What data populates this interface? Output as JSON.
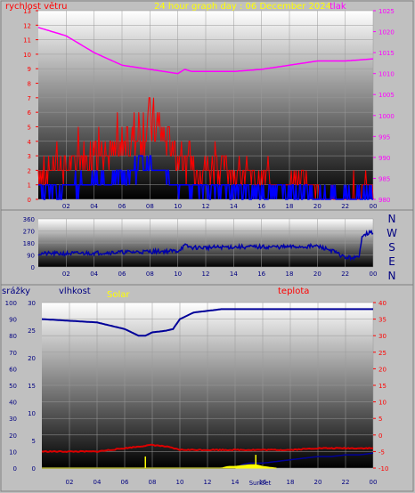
{
  "header": {
    "wind_label": "rychlost větru",
    "title": "24 hour graph day : 06 December 2024",
    "pressure_label": "tlak"
  },
  "compass": [
    "N",
    "W",
    "S",
    "E",
    "N"
  ],
  "lower_labels": {
    "rain": "srážky",
    "humidity": "vlhkost",
    "solar": "Solar",
    "temperature": "teplota",
    "sunrise_sunset": "SunSet"
  },
  "colors": {
    "wind_gust": "#ff0000",
    "wind_avg": "#0000ff",
    "pressure": "#ff00ff",
    "direction": "#0000aa",
    "humidity": "#000099",
    "temperature": "#dd0000",
    "rain": "#000099",
    "solar": "#ffff00",
    "title": "#ffff00"
  },
  "chart_data": [
    {
      "type": "line",
      "title": "24 hour graph day : 06 December 2024",
      "x_ticks": [
        "02",
        "04",
        "06",
        "08",
        "10",
        "12",
        "14",
        "16",
        "18",
        "20",
        "22",
        "00"
      ],
      "y_left_ticks": [
        "0",
        "1",
        "2",
        "3",
        "4",
        "5",
        "6",
        "7",
        "8",
        "9",
        "10",
        "11",
        "12",
        "13"
      ],
      "y_right_ticks": [
        "980",
        "985",
        "990",
        "995",
        "1000",
        "1005",
        "1010",
        "1015",
        "1020",
        "1025"
      ],
      "ylim_left": [
        0,
        13
      ],
      "ylim_right": [
        980,
        1025
      ],
      "series": [
        {
          "name": "rychlost větru",
          "axis": "left",
          "style": "gust",
          "x": [
            0,
            1,
            2,
            3,
            4,
            5,
            6,
            7,
            7.5,
            8,
            8.5,
            9,
            9.5,
            10,
            11,
            12,
            13,
            14,
            15,
            16,
            17,
            18,
            19,
            19.5,
            20,
            21,
            22,
            23,
            23.5,
            24
          ],
          "y": [
            1.5,
            2,
            2,
            2.5,
            3,
            3,
            3,
            4,
            5,
            5,
            4.5,
            4,
            3.5,
            2.5,
            2,
            2,
            2,
            1.5,
            1.5,
            1.5,
            1,
            1,
            1.5,
            1,
            0.5,
            0,
            0,
            0,
            1.5,
            0.5
          ]
        },
        {
          "name": "",
          "axis": "left",
          "style": "avg",
          "x": [
            0,
            1,
            2,
            3,
            4,
            5,
            6,
            7,
            7.5,
            8,
            8.5,
            9,
            9.5,
            10,
            11,
            12,
            13,
            14,
            15,
            16,
            17,
            18,
            19,
            19.5,
            20,
            21,
            22,
            23,
            23.5,
            24
          ],
          "y": [
            0.5,
            0.8,
            0.8,
            1,
            1.2,
            1,
            1.5,
            2,
            2.5,
            2.5,
            2.2,
            2,
            1.5,
            1,
            0.8,
            0.8,
            0.8,
            0.5,
            0.5,
            0.5,
            0.5,
            0.3,
            0.5,
            0.3,
            0.1,
            0,
            0,
            0,
            0.5,
            0.2
          ]
        },
        {
          "name": "tlak",
          "axis": "right",
          "style": "pressure",
          "x": [
            0,
            2,
            4,
            6,
            8,
            10,
            10.5,
            11,
            12,
            14,
            16,
            18,
            20,
            22,
            24
          ],
          "y": [
            1021,
            1019,
            1015,
            1012,
            1011,
            1010,
            1011,
            1010.5,
            1010.5,
            1010.5,
            1011,
            1012,
            1013,
            1013,
            1013.5
          ]
        }
      ]
    },
    {
      "type": "line",
      "x_ticks": [
        "02",
        "04",
        "06",
        "08",
        "10",
        "12",
        "14",
        "16",
        "18",
        "20",
        "22",
        "00"
      ],
      "y_ticks": [
        "0",
        "90",
        "180",
        "270",
        "360"
      ],
      "ylim": [
        0,
        360
      ],
      "series": [
        {
          "name": "",
          "x": [
            0,
            2,
            4,
            6,
            8,
            10,
            10.5,
            11,
            12,
            14,
            16,
            18,
            20,
            21,
            22,
            23,
            23.2,
            23.5,
            24
          ],
          "y": [
            100,
            100,
            105,
            110,
            115,
            120,
            160,
            145,
            145,
            150,
            150,
            150,
            155,
            125,
            70,
            70,
            240,
            250,
            260
          ]
        }
      ]
    },
    {
      "type": "line",
      "x_ticks": [
        "02",
        "04",
        "06",
        "08",
        "10",
        "12",
        "14",
        "16",
        "18",
        "20",
        "22",
        "00"
      ],
      "y_rain_ticks": [
        "0",
        "10",
        "20",
        "30",
        "40",
        "50",
        "60",
        "70",
        "80",
        "90",
        "100"
      ],
      "y_humidity_ticks": [
        "0",
        "5",
        "10",
        "15",
        "20",
        "25",
        "30"
      ],
      "y_temp_ticks": [
        "-10",
        "-5",
        "0",
        "5",
        "10",
        "15",
        "20",
        "25",
        "30",
        "35",
        "40"
      ],
      "ylim_rain": [
        0,
        100
      ],
      "ylim_temp": [
        -10,
        40
      ],
      "series": [
        {
          "name": "vlhkost",
          "axis": "rain",
          "style": "humidity",
          "x": [
            0,
            2,
            4,
            5,
            6,
            6.5,
            7,
            7.5,
            8,
            9,
            9.5,
            10,
            11,
            12,
            13,
            14,
            16,
            18,
            20,
            22,
            24
          ],
          "y": [
            90,
            89,
            88,
            86,
            84,
            82,
            80,
            80,
            82,
            83,
            84,
            90,
            94,
            95,
            96,
            96,
            96,
            96,
            96,
            96,
            96
          ]
        },
        {
          "name": "teplota",
          "axis": "temp",
          "style": "temp",
          "x": [
            0,
            2,
            4,
            6,
            7,
            8,
            9,
            10,
            11,
            12,
            14,
            16,
            18,
            20,
            22,
            24
          ],
          "y": [
            -5,
            -5,
            -5,
            -4,
            -3.5,
            -3,
            -3.5,
            -4.5,
            -4.5,
            -4.5,
            -4.5,
            -4.5,
            -4.5,
            -4,
            -4,
            -4
          ]
        },
        {
          "name": "srážky",
          "axis": "rain",
          "style": "rain",
          "x": [
            0,
            13,
            14,
            14.5,
            15,
            16,
            17,
            18,
            19,
            20,
            21,
            22,
            23,
            24
          ],
          "y": [
            0,
            0,
            0,
            2,
            3,
            3,
            4,
            5,
            6,
            7,
            7,
            8,
            8,
            9
          ]
        },
        {
          "name": "Solar",
          "axis": "rain",
          "style": "solar",
          "x": [
            0,
            13,
            13.5,
            14,
            14.5,
            15,
            15.5,
            16,
            16.5,
            17
          ],
          "y": [
            0,
            0,
            1,
            1,
            1.5,
            2,
            2,
            1,
            0.5,
            0
          ]
        }
      ]
    }
  ]
}
